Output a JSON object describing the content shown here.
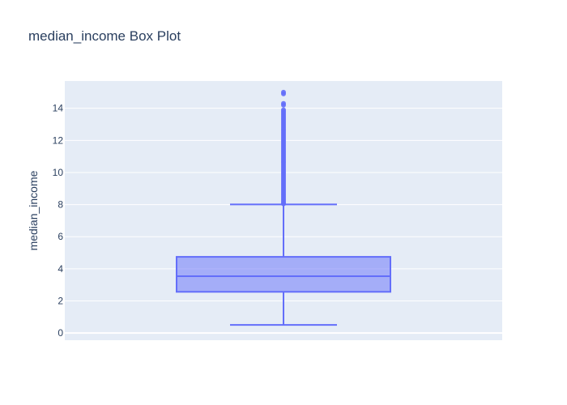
{
  "chart_data": {
    "type": "box",
    "title": "median_income Box Plot",
    "xlabel": "",
    "ylabel": "median_income",
    "ylim": [
      -0.45,
      15.7
    ],
    "yticks": [
      0,
      2,
      4,
      6,
      8,
      10,
      12,
      14
    ],
    "grid": true,
    "series": [
      {
        "name": "median_income",
        "lower_fence": 0.4999,
        "q1": 2.5634,
        "median": 3.5348,
        "q3": 4.7432,
        "upper_fence": 8.0113,
        "outliers": [
          8.05,
          8.1,
          8.2,
          8.3,
          8.4,
          8.5,
          8.6,
          8.7,
          8.8,
          8.9,
          9.0,
          9.1,
          9.2,
          9.3,
          9.4,
          9.5,
          9.6,
          9.7,
          9.8,
          9.9,
          10.0,
          10.1,
          10.2,
          10.3,
          10.4,
          10.5,
          10.6,
          10.7,
          10.8,
          10.9,
          11.0,
          11.1,
          11.2,
          11.3,
          11.4,
          11.5,
          11.6,
          11.7,
          11.8,
          11.9,
          12.0,
          12.1,
          12.2,
          12.3,
          12.4,
          12.5,
          12.6,
          12.7,
          12.8,
          12.9,
          13.0,
          13.1,
          13.2,
          13.3,
          13.4,
          13.5,
          13.6,
          13.7,
          13.8,
          13.9,
          14.2,
          14.3,
          14.9,
          15.0001
        ]
      }
    ],
    "colors": {
      "box_line": "#636efa",
      "box_fill": "rgba(99,110,250,0.5)",
      "plot_bg": "#e5ecf6",
      "grid": "#ffffff",
      "text": "#2a3f5f"
    }
  }
}
